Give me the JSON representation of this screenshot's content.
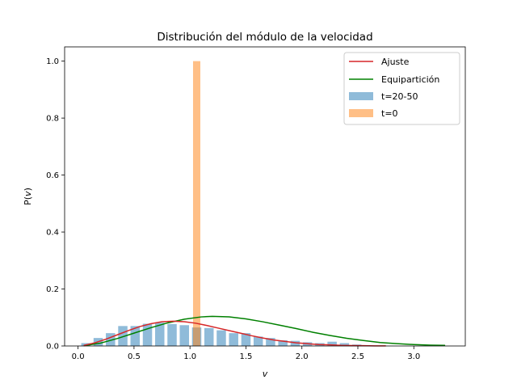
{
  "chart_data": {
    "type": "bar",
    "title": "Distribución del módulo de la velocidad",
    "xlabel": "v",
    "ylabel_prefix": "P(",
    "ylabel_var": "v",
    "ylabel_suffix": ")",
    "xlim": [
      -0.12,
      3.46
    ],
    "ylim": [
      0,
      1.05
    ],
    "xticks": [
      0.0,
      0.5,
      1.0,
      1.5,
      2.0,
      2.5,
      3.0
    ],
    "xtick_labels": [
      "0.0",
      "0.5",
      "1.0",
      "1.5",
      "2.0",
      "2.5",
      "3.0"
    ],
    "yticks": [
      0.0,
      0.2,
      0.4,
      0.6,
      0.8,
      1.0
    ],
    "ytick_labels": [
      "0.0",
      "0.2",
      "0.4",
      "0.6",
      "0.8",
      "1.0"
    ],
    "legend_position": "top-right",
    "grid": false,
    "legend": [
      "Ajuste",
      "Equipartición",
      "t=20-50",
      "t=0"
    ],
    "histogram_t20_50": {
      "name": "t=20-50",
      "color": "#1f77b4",
      "bin_width": 0.083,
      "x": [
        0.07,
        0.18,
        0.29,
        0.4,
        0.51,
        0.62,
        0.73,
        0.84,
        0.95,
        1.06,
        1.17,
        1.28,
        1.39,
        1.5,
        1.61,
        1.72,
        1.83,
        1.94,
        2.05,
        2.16,
        2.27,
        2.38,
        2.49
      ],
      "values": [
        0.01,
        0.028,
        0.045,
        0.07,
        0.07,
        0.078,
        0.082,
        0.077,
        0.073,
        0.065,
        0.063,
        0.055,
        0.045,
        0.045,
        0.033,
        0.028,
        0.02,
        0.018,
        0.013,
        0.01,
        0.015,
        0.01,
        0.005
      ]
    },
    "histogram_t0": {
      "name": "t=0",
      "color": "#ff7f0e",
      "x": [
        1.06
      ],
      "bin_width": 0.065,
      "values": [
        1.0
      ]
    },
    "line_ajuste": {
      "name": "Ajuste",
      "color": "#d62728",
      "x": [
        0.05,
        0.15,
        0.25,
        0.35,
        0.45,
        0.55,
        0.65,
        0.75,
        0.85,
        0.95,
        1.05,
        1.15,
        1.25,
        1.35,
        1.45,
        1.55,
        1.65,
        1.75,
        1.85,
        1.95,
        2.05,
        2.15,
        2.25,
        2.35,
        2.45,
        2.55,
        2.65,
        2.75
      ],
      "y": [
        0.002,
        0.011,
        0.024,
        0.039,
        0.054,
        0.068,
        0.078,
        0.085,
        0.087,
        0.085,
        0.08,
        0.072,
        0.063,
        0.054,
        0.045,
        0.036,
        0.028,
        0.021,
        0.016,
        0.011,
        0.008,
        0.005,
        0.004,
        0.002,
        0.0015,
        0.001,
        0.0005,
        0.0002
      ]
    },
    "line_equiparticion": {
      "name": "Equipartición",
      "color": "#008000",
      "x": [
        0.05,
        0.2,
        0.35,
        0.5,
        0.65,
        0.8,
        0.95,
        1.1,
        1.2,
        1.35,
        1.5,
        1.65,
        1.8,
        1.95,
        2.1,
        2.25,
        2.4,
        2.55,
        2.7,
        2.85,
        3.0,
        3.15,
        3.28
      ],
      "y": [
        0.001,
        0.01,
        0.026,
        0.045,
        0.064,
        0.081,
        0.094,
        0.102,
        0.104,
        0.102,
        0.095,
        0.085,
        0.073,
        0.061,
        0.048,
        0.037,
        0.027,
        0.019,
        0.012,
        0.008,
        0.005,
        0.003,
        0.002
      ]
    }
  }
}
